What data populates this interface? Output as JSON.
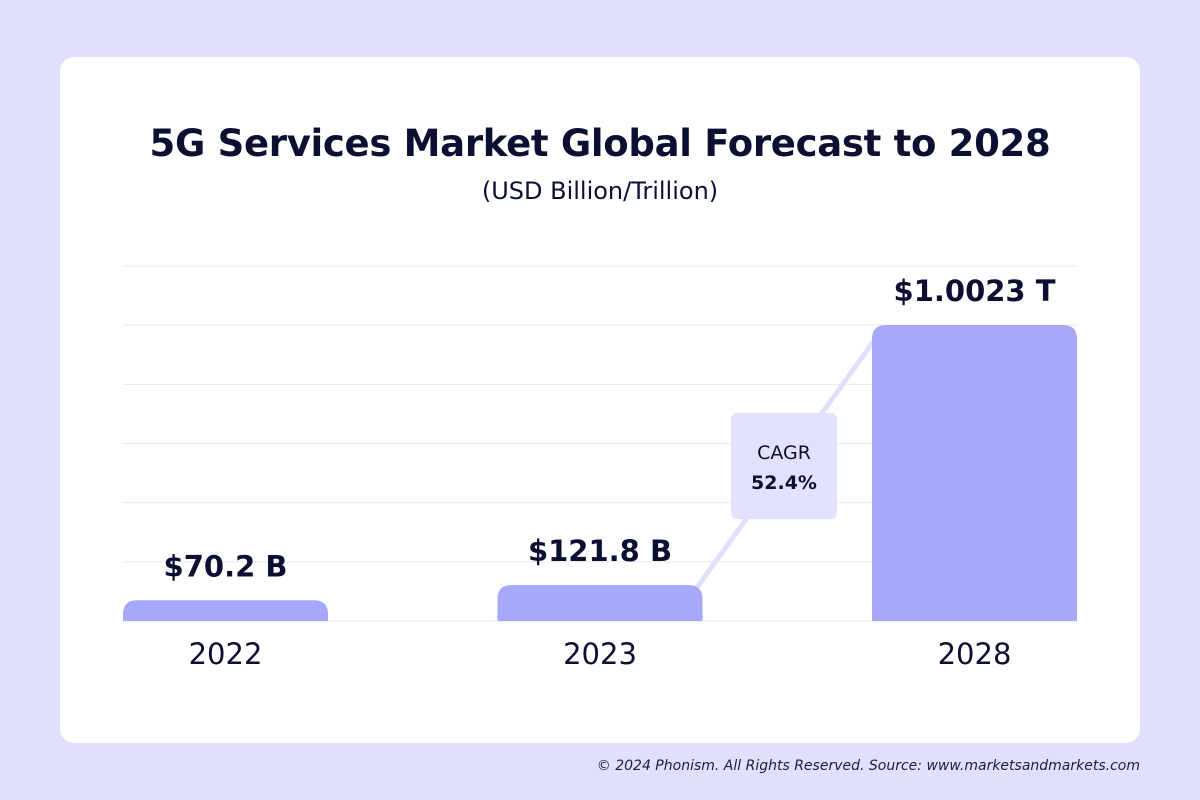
{
  "header": {
    "title": "5G Services Market Global Forecast to 2028",
    "subtitle": "(USD Billion/Trillion)"
  },
  "annotation": {
    "label": "CAGR",
    "value": "52.4%"
  },
  "footer": {
    "text": "© 2024 Phonism. All Rights Reserved. Source: www.marketsandmarkets.com"
  },
  "colors": {
    "background": "#e0e0fc",
    "card": "#ffffff",
    "bar": "#a8a8fb",
    "text": "#0b1033",
    "gridline": "#e8e8ee",
    "annotation_box": "#e2e2fc",
    "connector": "#e0e0fc"
  },
  "chart_data": {
    "type": "bar",
    "title": "5G Services Market Global Forecast to 2028",
    "subtitle": "(USD Billion/Trillion)",
    "categories": [
      "2022",
      "2023",
      "2028"
    ],
    "values": [
      70.2,
      121.8,
      1002.3
    ],
    "value_labels": [
      "$70.2 B",
      "$121.8 B",
      "$1.0023 T"
    ],
    "unit": "USD Billion",
    "xlabel": "",
    "ylabel": "",
    "ylim": [
      0,
      1200
    ],
    "grid": true,
    "legend": "none",
    "annotations": [
      {
        "text": "CAGR 52.4%",
        "from": "2023",
        "to": "2028"
      }
    ]
  }
}
